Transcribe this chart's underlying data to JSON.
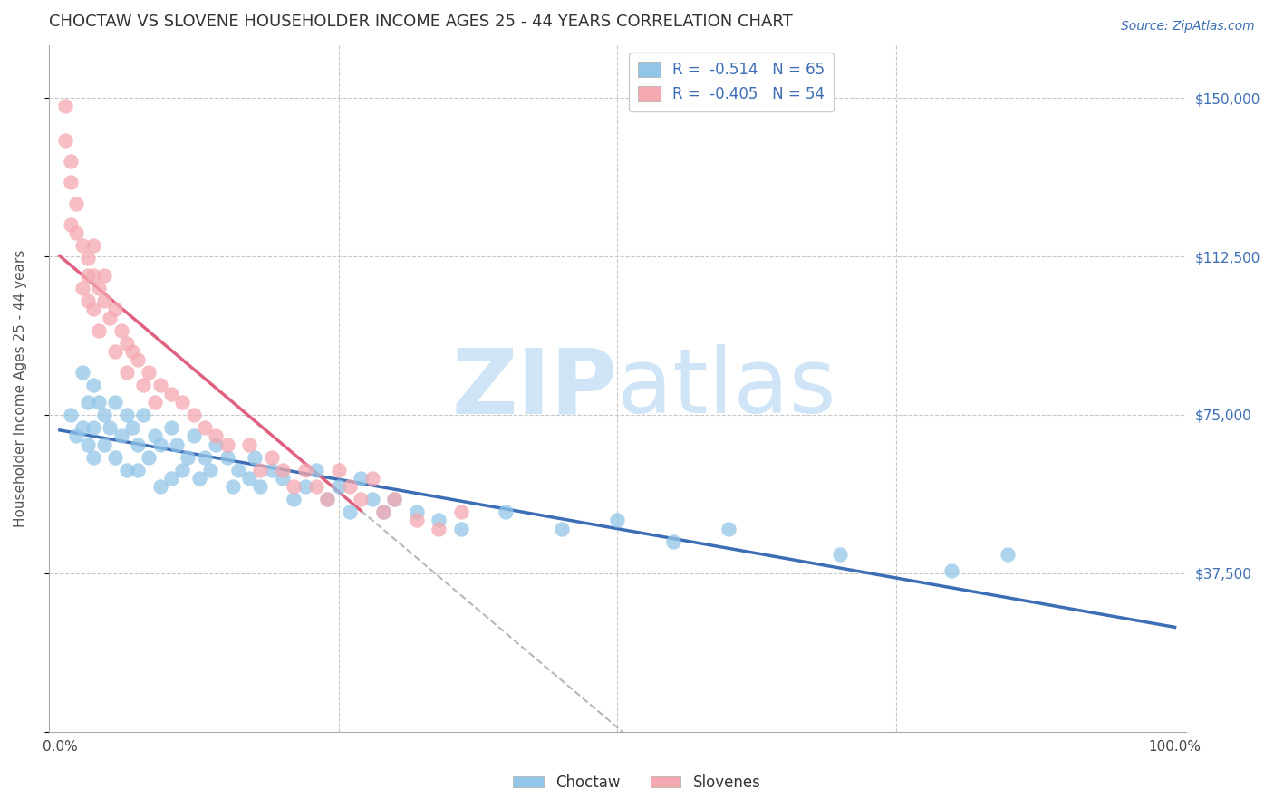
{
  "title": "CHOCTAW VS SLOVENE HOUSEHOLDER INCOME AGES 25 - 44 YEARS CORRELATION CHART",
  "source": "Source: ZipAtlas.com",
  "ylabel": "Householder Income Ages 25 - 44 years",
  "ylim": [
    0,
    162500
  ],
  "xlim": [
    -0.01,
    1.01
  ],
  "yticks": [
    0,
    37500,
    75000,
    112500,
    150000
  ],
  "ytick_labels_right": [
    "",
    "$37,500",
    "$75,000",
    "$112,500",
    "$150,000"
  ],
  "xticks": [
    0.0,
    0.25,
    0.5,
    0.75,
    1.0
  ],
  "xtick_labels": [
    "0.0%",
    "",
    "",
    "",
    "100.0%"
  ],
  "choctaw_R": -0.514,
  "choctaw_N": 65,
  "slovene_R": -0.405,
  "slovene_N": 54,
  "choctaw_color": "#92c5e8",
  "slovene_color": "#f4a9b0",
  "choctaw_line_color": "#3d6eb5",
  "slovene_line_color": "#e06080",
  "watermark_zip": "ZIP",
  "watermark_atlas": "atlas",
  "watermark_color": "#d0e4f7",
  "background_color": "#ffffff",
  "grid_color": "#c8c8c8",
  "choctaw_x": [
    0.01,
    0.015,
    0.02,
    0.02,
    0.025,
    0.025,
    0.03,
    0.03,
    0.03,
    0.035,
    0.04,
    0.04,
    0.045,
    0.05,
    0.05,
    0.055,
    0.06,
    0.06,
    0.065,
    0.07,
    0.07,
    0.075,
    0.08,
    0.085,
    0.09,
    0.09,
    0.1,
    0.1,
    0.105,
    0.11,
    0.115,
    0.12,
    0.125,
    0.13,
    0.135,
    0.14,
    0.15,
    0.155,
    0.16,
    0.17,
    0.175,
    0.18,
    0.19,
    0.2,
    0.21,
    0.22,
    0.23,
    0.24,
    0.25,
    0.26,
    0.27,
    0.28,
    0.29,
    0.3,
    0.32,
    0.34,
    0.36,
    0.4,
    0.45,
    0.5,
    0.55,
    0.6,
    0.7,
    0.8,
    0.85
  ],
  "choctaw_y": [
    75000,
    70000,
    85000,
    72000,
    78000,
    68000,
    82000,
    72000,
    65000,
    78000,
    75000,
    68000,
    72000,
    78000,
    65000,
    70000,
    75000,
    62000,
    72000,
    68000,
    62000,
    75000,
    65000,
    70000,
    68000,
    58000,
    72000,
    60000,
    68000,
    62000,
    65000,
    70000,
    60000,
    65000,
    62000,
    68000,
    65000,
    58000,
    62000,
    60000,
    65000,
    58000,
    62000,
    60000,
    55000,
    58000,
    62000,
    55000,
    58000,
    52000,
    60000,
    55000,
    52000,
    55000,
    52000,
    50000,
    48000,
    52000,
    48000,
    50000,
    45000,
    48000,
    42000,
    38000,
    42000
  ],
  "slovene_x": [
    0.005,
    0.005,
    0.01,
    0.01,
    0.01,
    0.015,
    0.015,
    0.02,
    0.02,
    0.025,
    0.025,
    0.025,
    0.03,
    0.03,
    0.03,
    0.035,
    0.035,
    0.04,
    0.04,
    0.045,
    0.05,
    0.05,
    0.055,
    0.06,
    0.06,
    0.065,
    0.07,
    0.075,
    0.08,
    0.085,
    0.09,
    0.1,
    0.11,
    0.12,
    0.13,
    0.14,
    0.15,
    0.17,
    0.18,
    0.19,
    0.2,
    0.21,
    0.22,
    0.23,
    0.24,
    0.25,
    0.26,
    0.27,
    0.28,
    0.29,
    0.3,
    0.32,
    0.34,
    0.36
  ],
  "slovene_y": [
    148000,
    140000,
    130000,
    120000,
    135000,
    125000,
    118000,
    115000,
    105000,
    112000,
    102000,
    108000,
    108000,
    100000,
    115000,
    105000,
    95000,
    102000,
    108000,
    98000,
    100000,
    90000,
    95000,
    92000,
    85000,
    90000,
    88000,
    82000,
    85000,
    78000,
    82000,
    80000,
    78000,
    75000,
    72000,
    70000,
    68000,
    68000,
    62000,
    65000,
    62000,
    58000,
    62000,
    58000,
    55000,
    62000,
    58000,
    55000,
    60000,
    52000,
    55000,
    50000,
    48000,
    52000
  ],
  "title_fontsize": 13,
  "label_fontsize": 11,
  "tick_fontsize": 11
}
